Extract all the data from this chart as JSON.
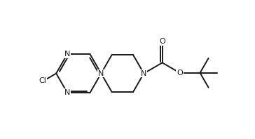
{
  "background": "#ffffff",
  "line_color": "#1a1a1a",
  "line_width": 1.4,
  "font_size": 8.0,
  "figsize": [
    3.64,
    1.98
  ],
  "dpi": 100,
  "xlim": [
    -1,
    11
  ],
  "ylim": [
    -0.5,
    6.5
  ]
}
